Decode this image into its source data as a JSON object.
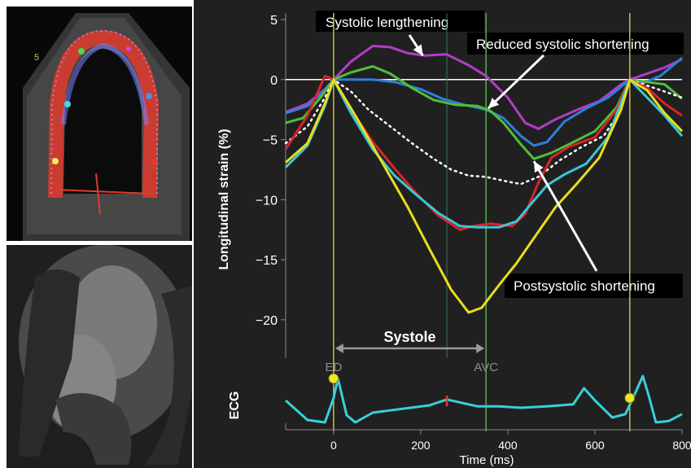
{
  "chart_data": {
    "type": "line",
    "title": "",
    "xlabel": "Time (ms)",
    "ylabel": "Longitudinal strain (%)",
    "xlim": [
      -110,
      800
    ],
    "ylim": [
      -21.5,
      5
    ],
    "x_ticks": [
      0,
      200,
      400,
      600,
      800
    ],
    "y_ticks": [
      5,
      0,
      -5,
      -10,
      -15,
      -20
    ],
    "grid": false,
    "markers": [
      {
        "label": "ED",
        "x": 0
      },
      {
        "label": "AVC",
        "x": 350
      }
    ],
    "end_marker_x": 680,
    "systole": {
      "label": "Systole",
      "from": 0,
      "to": 350
    },
    "annotations": [
      {
        "text": "Systolic lengthening",
        "target": [
          205,
          2.0
        ]
      },
      {
        "text": "Reduced systolic shortening",
        "target": [
          355,
          -2.4
        ]
      },
      {
        "text": "Postsystolic shortening",
        "target": [
          460,
          -6.8
        ]
      }
    ],
    "series": [
      {
        "color": "#b23cc7",
        "points": [
          [
            -110,
            -2.7
          ],
          [
            -60,
            -2
          ],
          [
            -20,
            -0.8
          ],
          [
            0,
            0
          ],
          [
            40,
            1.5
          ],
          [
            90,
            2.8
          ],
          [
            130,
            2.7
          ],
          [
            170,
            2.2
          ],
          [
            210,
            2.0
          ],
          [
            260,
            2.1
          ],
          [
            310,
            1.2
          ],
          [
            350,
            0.3
          ],
          [
            400,
            -1.5
          ],
          [
            440,
            -3.6
          ],
          [
            470,
            -4.1
          ],
          [
            510,
            -3.3
          ],
          [
            560,
            -2.5
          ],
          [
            610,
            -1.8
          ],
          [
            660,
            -0.4
          ],
          [
            680,
            0
          ],
          [
            720,
            0.5
          ],
          [
            760,
            1.0
          ],
          [
            800,
            1.7
          ]
        ]
      },
      {
        "color": "#2f7fd6",
        "points": [
          [
            -110,
            -2.8
          ],
          [
            -60,
            -2.2
          ],
          [
            -20,
            -0.9
          ],
          [
            0,
            0
          ],
          [
            40,
            0
          ],
          [
            90,
            0
          ],
          [
            140,
            -0.2
          ],
          [
            200,
            -0.8
          ],
          [
            250,
            -1.6
          ],
          [
            300,
            -2.1
          ],
          [
            350,
            -2.5
          ],
          [
            390,
            -3.2
          ],
          [
            430,
            -4.7
          ],
          [
            460,
            -5.5
          ],
          [
            490,
            -5.2
          ],
          [
            530,
            -3.5
          ],
          [
            580,
            -2.4
          ],
          [
            630,
            -1.5
          ],
          [
            680,
            0
          ],
          [
            710,
            -0.3
          ],
          [
            750,
            0.3
          ],
          [
            780,
            1.2
          ],
          [
            800,
            1.8
          ]
        ]
      },
      {
        "color": "#4fbf3a",
        "points": [
          [
            -110,
            -3.6
          ],
          [
            -70,
            -3.2
          ],
          [
            -30,
            -1.5
          ],
          [
            0,
            0
          ],
          [
            40,
            0.6
          ],
          [
            90,
            1.1
          ],
          [
            130,
            0.5
          ],
          [
            180,
            -0.7
          ],
          [
            230,
            -1.7
          ],
          [
            280,
            -2.1
          ],
          [
            330,
            -2.2
          ],
          [
            360,
            -2.6
          ],
          [
            390,
            -3.6
          ],
          [
            430,
            -5.4
          ],
          [
            460,
            -6.6
          ],
          [
            500,
            -6.1
          ],
          [
            540,
            -5.4
          ],
          [
            600,
            -4.3
          ],
          [
            650,
            -2.3
          ],
          [
            680,
            0
          ],
          [
            720,
            -0.2
          ],
          [
            760,
            -0.4
          ],
          [
            800,
            -1.6
          ]
        ]
      },
      {
        "color": "#ffffff",
        "dashed": true,
        "points": [
          [
            -110,
            -5.3
          ],
          [
            -60,
            -3.9
          ],
          [
            -20,
            -1.5
          ],
          [
            0,
            0
          ],
          [
            40,
            -1
          ],
          [
            80,
            -2.5
          ],
          [
            130,
            -3.9
          ],
          [
            180,
            -5.3
          ],
          [
            230,
            -6.6
          ],
          [
            270,
            -7.5
          ],
          [
            310,
            -8.0
          ],
          [
            350,
            -8.1
          ],
          [
            400,
            -8.5
          ],
          [
            430,
            -8.7
          ],
          [
            470,
            -8.1
          ],
          [
            520,
            -6.7
          ],
          [
            570,
            -5.6
          ],
          [
            620,
            -4.7
          ],
          [
            660,
            -2.5
          ],
          [
            680,
            0
          ],
          [
            720,
            -0.5
          ],
          [
            760,
            -1.0
          ],
          [
            800,
            -1.5
          ]
        ]
      },
      {
        "color": "#d8242a",
        "points": [
          [
            -110,
            -5.8
          ],
          [
            -60,
            -3
          ],
          [
            -20,
            0.3
          ],
          [
            0,
            0
          ],
          [
            40,
            -2.5
          ],
          [
            90,
            -5.2
          ],
          [
            140,
            -7.4
          ],
          [
            190,
            -9.5
          ],
          [
            240,
            -11.3
          ],
          [
            290,
            -12.5
          ],
          [
            320,
            -12.2
          ],
          [
            360,
            -12.0
          ],
          [
            410,
            -12.2
          ],
          [
            440,
            -11.2
          ],
          [
            470,
            -8.6
          ],
          [
            500,
            -6.5
          ],
          [
            540,
            -5.6
          ],
          [
            600,
            -4.8
          ],
          [
            650,
            -2.5
          ],
          [
            680,
            0
          ],
          [
            720,
            -0.7
          ],
          [
            760,
            -2
          ],
          [
            800,
            -3
          ]
        ]
      },
      {
        "color": "#3bc6d6",
        "points": [
          [
            -110,
            -7.3
          ],
          [
            -60,
            -5.5
          ],
          [
            -20,
            -2.2
          ],
          [
            0,
            0
          ],
          [
            40,
            -2.8
          ],
          [
            90,
            -5.8
          ],
          [
            140,
            -8.0
          ],
          [
            190,
            -9.6
          ],
          [
            240,
            -11.1
          ],
          [
            290,
            -12.2
          ],
          [
            330,
            -12.3
          ],
          [
            380,
            -12.3
          ],
          [
            420,
            -11.8
          ],
          [
            450,
            -10.5
          ],
          [
            490,
            -8.8
          ],
          [
            530,
            -7.9
          ],
          [
            580,
            -7.0
          ],
          [
            630,
            -4.8
          ],
          [
            680,
            0
          ],
          [
            720,
            -1.5
          ],
          [
            760,
            -3
          ],
          [
            800,
            -4.7
          ]
        ]
      },
      {
        "color": "#e8de1e",
        "points": [
          [
            -110,
            -6.9
          ],
          [
            -60,
            -5.3
          ],
          [
            -20,
            -2
          ],
          [
            0,
            0
          ],
          [
            50,
            -3
          ],
          [
            110,
            -6.8
          ],
          [
            170,
            -10.6
          ],
          [
            220,
            -14.1
          ],
          [
            270,
            -17.5
          ],
          [
            310,
            -19.4
          ],
          [
            340,
            -19.0
          ],
          [
            380,
            -17.1
          ],
          [
            420,
            -15.3
          ],
          [
            460,
            -13.2
          ],
          [
            510,
            -10.6
          ],
          [
            560,
            -8.6
          ],
          [
            610,
            -6.5
          ],
          [
            660,
            -2.5
          ],
          [
            680,
            0
          ],
          [
            720,
            -0.9
          ],
          [
            760,
            -2.8
          ],
          [
            800,
            -4.3
          ]
        ]
      }
    ],
    "ecg": {
      "label": "ECG",
      "color": "#38d0d8",
      "points": [
        [
          -110,
          0.5
        ],
        [
          -60,
          0.1
        ],
        [
          -20,
          0.05
        ],
        [
          0,
          0.55
        ],
        [
          10,
          0.95
        ],
        [
          30,
          0.2
        ],
        [
          50,
          0.05
        ],
        [
          90,
          0.25
        ],
        [
          150,
          0.32
        ],
        [
          220,
          0.4
        ],
        [
          260,
          0.52
        ],
        [
          300,
          0.44
        ],
        [
          330,
          0.38
        ],
        [
          380,
          0.38
        ],
        [
          430,
          0.35
        ],
        [
          490,
          0.38
        ],
        [
          550,
          0.42
        ],
        [
          575,
          0.75
        ],
        [
          600,
          0.5
        ],
        [
          640,
          0.15
        ],
        [
          670,
          0.22
        ],
        [
          690,
          0.6
        ],
        [
          710,
          1.0
        ],
        [
          725,
          0.55
        ],
        [
          740,
          0.05
        ],
        [
          770,
          0.08
        ],
        [
          800,
          0.22
        ]
      ],
      "markers": [
        {
          "x": 0,
          "y": 0.95
        },
        {
          "x": 680,
          "y": 0.55
        }
      ],
      "red_tick_x": 260
    }
  }
}
